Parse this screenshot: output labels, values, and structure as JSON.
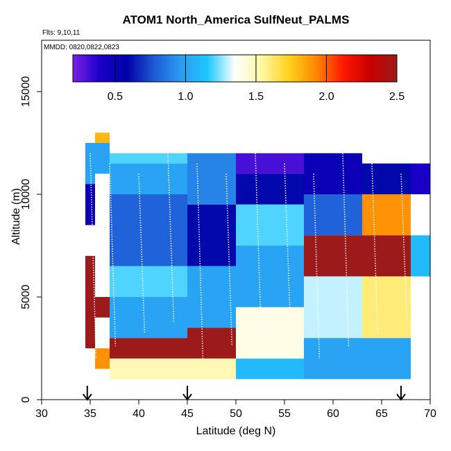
{
  "chart_data": {
    "type": "heatmap",
    "title": "ATOM1 North_America SulfNeut_PALMS",
    "subtitle": "Flts: 9,10,11",
    "annotation": "MMDD: 0820,0822,0823",
    "xlabel": "Latitude (deg N)",
    "ylabel": "Altitude (m)",
    "xlim": [
      30,
      70
    ],
    "ylim": [
      0,
      17500
    ],
    "x_ticks": [
      "30",
      "35",
      "40",
      "45",
      "50",
      "55",
      "60",
      "65",
      "70"
    ],
    "y_ticks": [
      "0",
      "5000",
      "10000",
      "15000"
    ],
    "grid": false,
    "colorbar": {
      "range": [
        0.2,
        2.5
      ],
      "ticks": [
        "0.5",
        "1.0",
        "1.5",
        "2.0",
        "2.5"
      ],
      "placement": "top-inside",
      "colors": [
        "#7b1fe6",
        "#1a00c8",
        "#0000a8",
        "#1e5ad6",
        "#2b9bf2",
        "#1ec8ff",
        "#ffffff",
        "#fff7a0",
        "#ffd21c",
        "#ff8800",
        "#ff1a00",
        "#c80000",
        "#9c1a1a"
      ]
    },
    "arrows_at_latitude": [
      34.7,
      45,
      67
    ],
    "cells": [
      {
        "lat": [
          34.5,
          35.5
        ],
        "alt": [
          10500,
          12500
        ],
        "value": 1.0
      },
      {
        "lat": [
          34.5,
          35.5
        ],
        "alt": [
          8500,
          10500
        ],
        "value": 0.5
      },
      {
        "lat": [
          34.5,
          35.5
        ],
        "alt": [
          2500,
          7000
        ],
        "value": 2.5
      },
      {
        "lat": [
          35.5,
          37
        ],
        "alt": [
          12500,
          13000
        ],
        "value": 1.8
      },
      {
        "lat": [
          35.5,
          37
        ],
        "alt": [
          11000,
          12500
        ],
        "value": 1.0
      },
      {
        "lat": [
          35.5,
          37
        ],
        "alt": [
          4000,
          5000
        ],
        "value": 2.5
      },
      {
        "lat": [
          35.5,
          37
        ],
        "alt": [
          1500,
          2500
        ],
        "value": 1.9
      },
      {
        "lat": [
          37,
          45
        ],
        "alt": [
          11500,
          12000
        ],
        "value": 1.2
      },
      {
        "lat": [
          37,
          45
        ],
        "alt": [
          10000,
          11500
        ],
        "value": 1.0
      },
      {
        "lat": [
          37,
          45
        ],
        "alt": [
          6500,
          10000
        ],
        "value": 0.8
      },
      {
        "lat": [
          37,
          45
        ],
        "alt": [
          5000,
          6500
        ],
        "value": 1.2
      },
      {
        "lat": [
          37,
          45
        ],
        "alt": [
          3000,
          5000
        ],
        "value": 1.0
      },
      {
        "lat": [
          37,
          45
        ],
        "alt": [
          2000,
          3000
        ],
        "value": 2.5
      },
      {
        "lat": [
          37,
          45
        ],
        "alt": [
          1000,
          2000
        ],
        "value": 1.5
      },
      {
        "lat": [
          45,
          50
        ],
        "alt": [
          9500,
          12000
        ],
        "value": 0.9
      },
      {
        "lat": [
          45,
          50
        ],
        "alt": [
          6500,
          9500
        ],
        "value": 0.6
      },
      {
        "lat": [
          45,
          50
        ],
        "alt": [
          3500,
          6500
        ],
        "value": 1.0
      },
      {
        "lat": [
          45,
          50
        ],
        "alt": [
          2000,
          3500
        ],
        "value": 2.5
      },
      {
        "lat": [
          45,
          50
        ],
        "alt": [
          1000,
          2000
        ],
        "value": 1.5
      },
      {
        "lat": [
          50,
          57
        ],
        "alt": [
          11000,
          12000
        ],
        "value": 0.3
      },
      {
        "lat": [
          50,
          57
        ],
        "alt": [
          9500,
          11000
        ],
        "value": 0.6
      },
      {
        "lat": [
          50,
          57
        ],
        "alt": [
          7500,
          9500
        ],
        "value": 1.2
      },
      {
        "lat": [
          50,
          57
        ],
        "alt": [
          4500,
          7500
        ],
        "value": 1.0
      },
      {
        "lat": [
          50,
          57
        ],
        "alt": [
          2000,
          4500
        ],
        "value": 1.4
      },
      {
        "lat": [
          50,
          57
        ],
        "alt": [
          1000,
          2000
        ],
        "value": 1.1
      },
      {
        "lat": [
          57,
          63
        ],
        "alt": [
          10000,
          12000
        ],
        "value": 0.5
      },
      {
        "lat": [
          57,
          63
        ],
        "alt": [
          8000,
          10000
        ],
        "value": 0.8
      },
      {
        "lat": [
          57,
          63
        ],
        "alt": [
          6000,
          8000
        ],
        "value": 2.5
      },
      {
        "lat": [
          57,
          63
        ],
        "alt": [
          3000,
          6000
        ],
        "value": 1.3
      },
      {
        "lat": [
          57,
          63
        ],
        "alt": [
          1000,
          3000
        ],
        "value": 1.0
      },
      {
        "lat": [
          63,
          68
        ],
        "alt": [
          10000,
          11500
        ],
        "value": 0.6
      },
      {
        "lat": [
          63,
          68
        ],
        "alt": [
          8000,
          10000
        ],
        "value": 1.9
      },
      {
        "lat": [
          63,
          68
        ],
        "alt": [
          6000,
          8000
        ],
        "value": 2.5
      },
      {
        "lat": [
          63,
          68
        ],
        "alt": [
          3000,
          6000
        ],
        "value": 1.6
      },
      {
        "lat": [
          63,
          68
        ],
        "alt": [
          1000,
          3000
        ],
        "value": 1.0
      },
      {
        "lat": [
          68,
          70
        ],
        "alt": [
          10000,
          11500
        ],
        "value": 0.4
      },
      {
        "lat": [
          68,
          70
        ],
        "alt": [
          6000,
          8000
        ],
        "value": 1.1
      }
    ]
  }
}
